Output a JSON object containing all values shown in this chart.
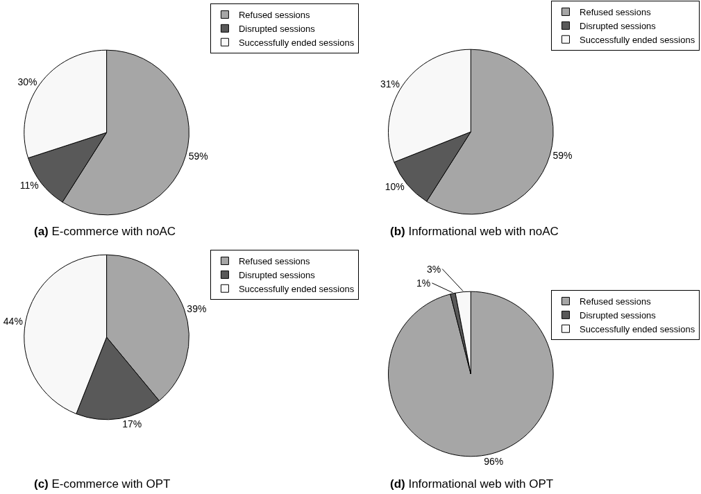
{
  "chart_data": [
    {
      "type": "pie",
      "title": "(a) E-commerce with noAC",
      "categories": [
        "Refused sessions",
        "Disrupted sessions",
        "Successfully ended sessions"
      ],
      "values": [
        59,
        11,
        30
      ],
      "value_labels": [
        "59%",
        "11%",
        "30%"
      ],
      "colors": [
        "#a6a6a6",
        "#595959",
        "#f8f8f8"
      ],
      "legend": "top right"
    },
    {
      "type": "pie",
      "title": "(b) Informational web with noAC",
      "categories": [
        "Refused sessions",
        "Disrupted sessions",
        "Successfully ended sessions"
      ],
      "values": [
        59,
        10,
        31
      ],
      "value_labels": [
        "59%",
        "10%",
        "31%"
      ],
      "colors": [
        "#a6a6a6",
        "#595959",
        "#f8f8f8"
      ],
      "legend": "top right"
    },
    {
      "type": "pie",
      "title": "(c) E-commerce with OPT",
      "categories": [
        "Refused sessions",
        "Disrupted sessions",
        "Successfully ended sessions"
      ],
      "values": [
        39,
        17,
        44
      ],
      "value_labels": [
        "39%",
        "17%",
        "44%"
      ],
      "colors": [
        "#a6a6a6",
        "#595959",
        "#f8f8f8"
      ],
      "legend": "top right"
    },
    {
      "type": "pie",
      "title": "(d) Informational web with OPT",
      "categories": [
        "Refused sessions",
        "Disrupted sessions",
        "Successfully ended sessions"
      ],
      "values": [
        96,
        1,
        3
      ],
      "value_labels": [
        "96%",
        "1%",
        "3%"
      ],
      "colors": [
        "#a6a6a6",
        "#595959",
        "#f8f8f8"
      ],
      "legend": "top right"
    }
  ]
}
